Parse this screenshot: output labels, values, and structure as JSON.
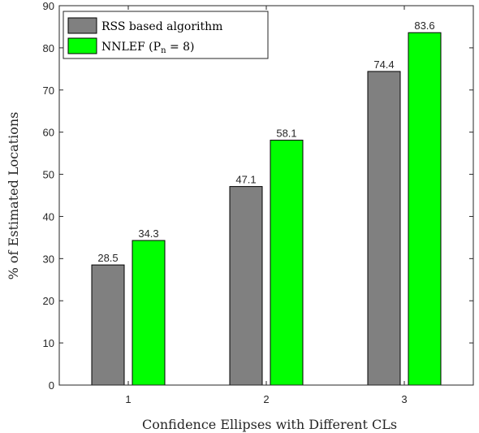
{
  "chart_data": {
    "type": "bar",
    "categories": [
      "1",
      "2",
      "3"
    ],
    "series": [
      {
        "name": "RSS based algorithm",
        "values": [
          28.5,
          47.1,
          74.4
        ],
        "color": "#808080"
      },
      {
        "name": "NNLEF (P",
        "values": [
          34.3,
          58.1,
          83.6
        ],
        "color": "#00ff00"
      }
    ],
    "legend_extra": {
      "pn_sub": "n",
      "pn_tail": " = 8)"
    },
    "data_labels": [
      [
        "28.5",
        "47.1",
        "74.4"
      ],
      [
        "34.3",
        "58.1",
        "83.6"
      ]
    ],
    "xlabel": "Confidence Ellipses with Different CLs",
    "ylabel": "% of Estimated Locations",
    "ylim": [
      0,
      90
    ],
    "yticks": [
      0,
      10,
      20,
      30,
      40,
      50,
      60,
      70,
      80,
      90
    ],
    "grid": false,
    "legend_position": "top-left"
  }
}
